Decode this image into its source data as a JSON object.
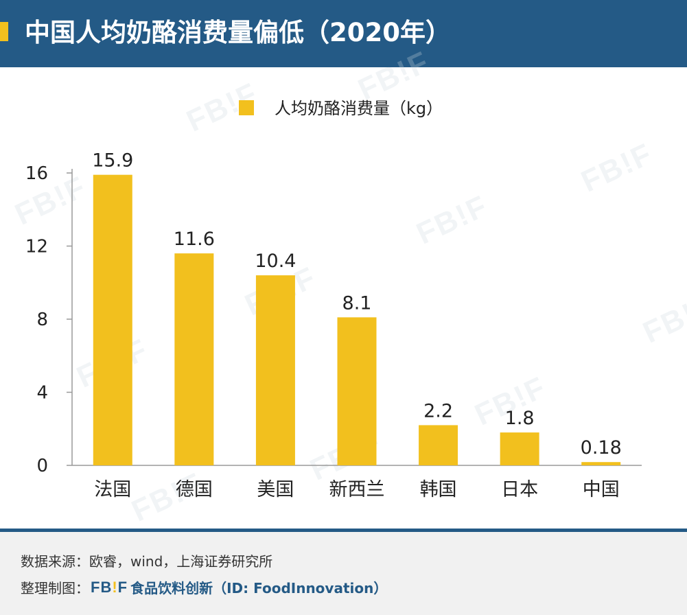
{
  "header": {
    "title": "中国人均奶酪消费量偏低（2020年）"
  },
  "watermark": {
    "text": "FB!F"
  },
  "colors": {
    "header_bg": "#245a86",
    "accent": "#f2c01e",
    "bar": "#f2c01e",
    "axis": "#999999",
    "text": "#222222",
    "footer_bg": "#f1f1f1"
  },
  "chart_data": {
    "type": "bar",
    "title": "",
    "categories": [
      "法国",
      "德国",
      "美国",
      "新西兰",
      "韩国",
      "日本",
      "中国"
    ],
    "series": [
      {
        "name": "人均奶酪消费量（kg）",
        "values": [
          15.9,
          11.6,
          10.4,
          8.1,
          2.2,
          1.8,
          0.18
        ],
        "labels": [
          "15.9",
          "11.6",
          "10.4",
          "8.1",
          "2.2",
          "1.8",
          "0.18"
        ]
      }
    ],
    "xlabel": "",
    "ylabel": "",
    "ylim": [
      0,
      16
    ],
    "yticks": [
      0,
      4,
      8,
      12,
      16
    ],
    "grid": false,
    "legend": "top-center"
  },
  "footer": {
    "source": "数据来源：欧睿，wind，上海证券研究所",
    "credit_prefix": "整理制图：",
    "brand_logo": "FB!F",
    "brand_text": "食品饮料创新（ID: FoodInnovation）"
  }
}
